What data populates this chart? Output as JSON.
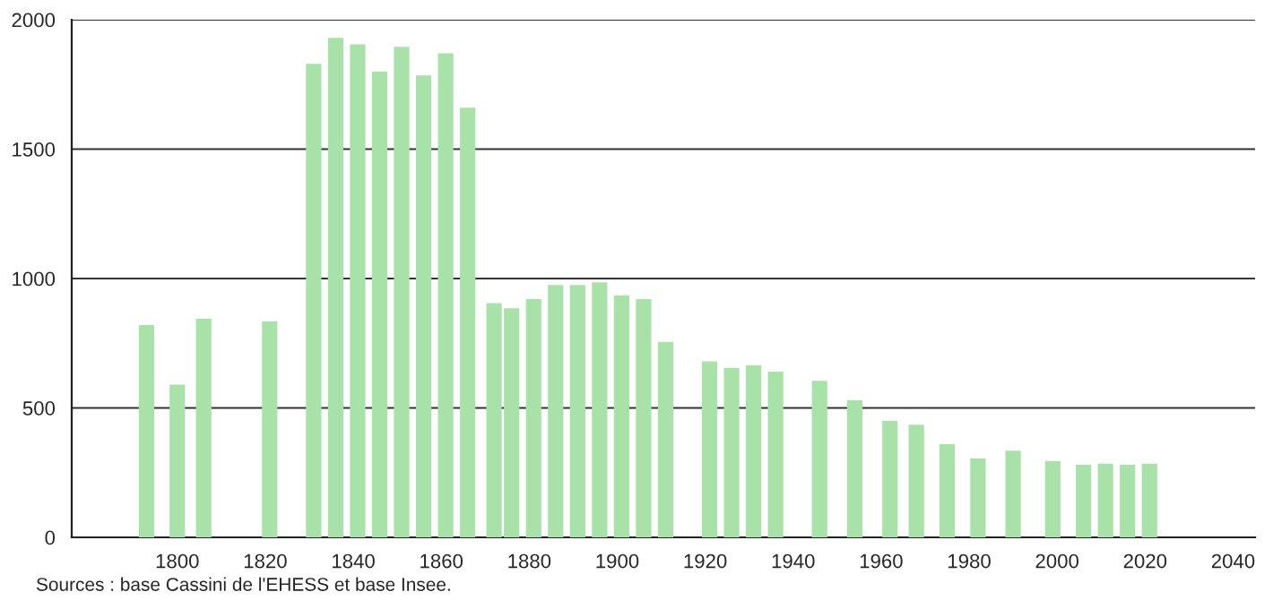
{
  "chart_data": {
    "type": "bar",
    "x": [
      1793,
      1800,
      1806,
      1821,
      1831,
      1836,
      1841,
      1846,
      1851,
      1856,
      1861,
      1866,
      1872,
      1876,
      1881,
      1886,
      1891,
      1896,
      1901,
      1906,
      1911,
      1921,
      1926,
      1931,
      1936,
      1946,
      1954,
      1962,
      1968,
      1975,
      1982,
      1990,
      1999,
      2006,
      2011,
      2016,
      2021
    ],
    "values": [
      820,
      590,
      845,
      835,
      1830,
      1930,
      1905,
      1800,
      1895,
      1785,
      1870,
      1660,
      905,
      885,
      920,
      975,
      975,
      985,
      935,
      920,
      755,
      680,
      655,
      665,
      640,
      605,
      530,
      450,
      435,
      360,
      305,
      335,
      295,
      280,
      285,
      280,
      285
    ],
    "color": "#a8e2a8",
    "xlim": [
      1776,
      2045
    ],
    "xticks": [
      1800,
      1820,
      1840,
      1860,
      1880,
      1900,
      1920,
      1940,
      1960,
      1980,
      2000,
      2020,
      2040
    ],
    "ylim": [
      0,
      2000
    ],
    "yticks": [
      0,
      500,
      1000,
      1500,
      2000
    ],
    "grid": "y",
    "annotations": [
      "Sources : base Cassini de l'EHESS et base Insee."
    ]
  }
}
